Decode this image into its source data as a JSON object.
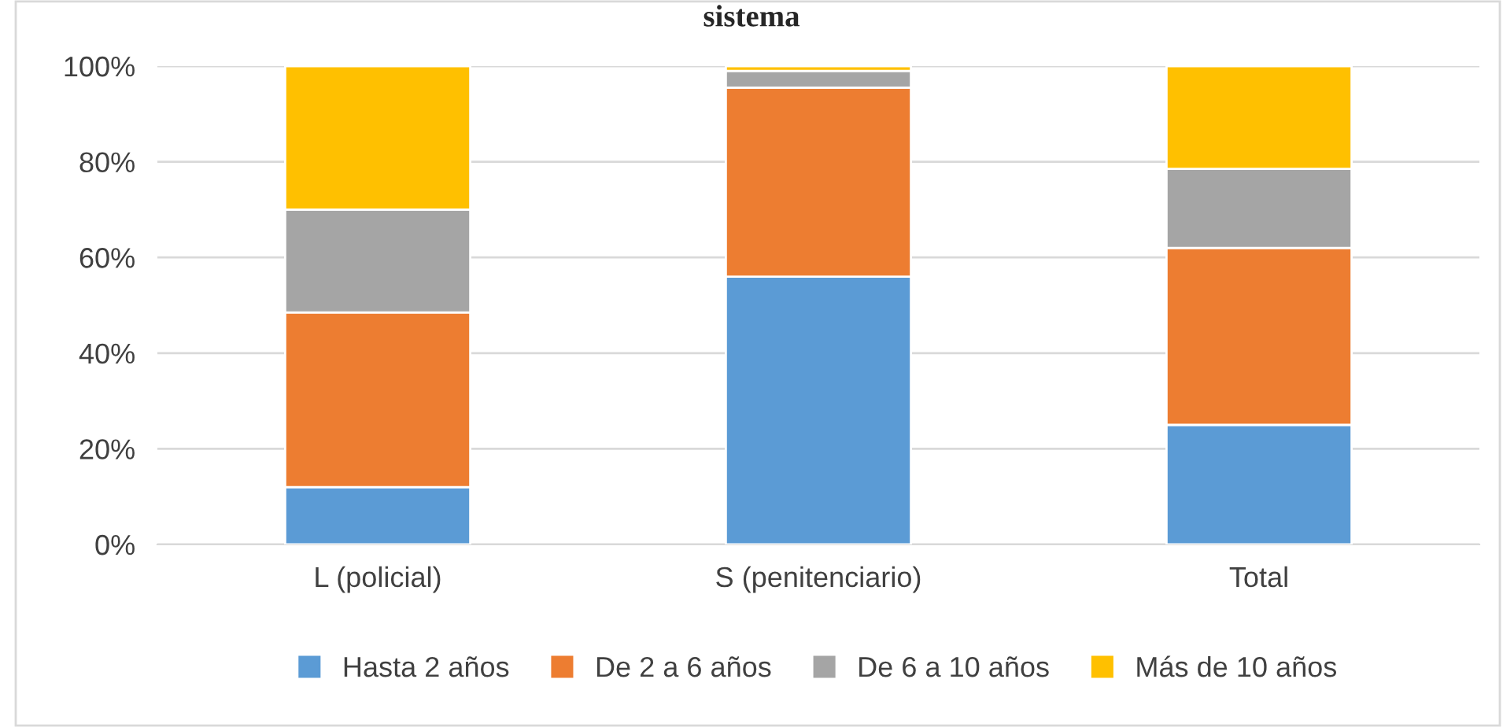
{
  "chart_data": {
    "type": "bar",
    "title": "sistema",
    "stacked": true,
    "categories": [
      "L (policial)",
      "S (penitenciario)",
      "Total"
    ],
    "series": [
      {
        "name": "Hasta 2 años",
        "color": "#5b9bd5",
        "values": [
          12,
          56,
          25
        ]
      },
      {
        "name": "De 2 a 6 años",
        "color": "#ed7d31",
        "values": [
          36.5,
          39.5,
          37
        ]
      },
      {
        "name": "De 6 a 10 años",
        "color": "#a5a5a5",
        "values": [
          21.5,
          3.5,
          16.5
        ]
      },
      {
        "name": "Más de 10 años",
        "color": "#ffc000",
        "values": [
          30,
          1,
          21.5
        ]
      }
    ],
    "ylim": [
      0,
      100
    ],
    "yticks": [
      {
        "value": 0,
        "label": "0%"
      },
      {
        "value": 20,
        "label": "20%"
      },
      {
        "value": 40,
        "label": "40%"
      },
      {
        "value": 60,
        "label": "60%"
      },
      {
        "value": 80,
        "label": "80%"
      },
      {
        "value": 100,
        "label": "100%"
      }
    ],
    "grid": "y",
    "legend": "bottom"
  }
}
